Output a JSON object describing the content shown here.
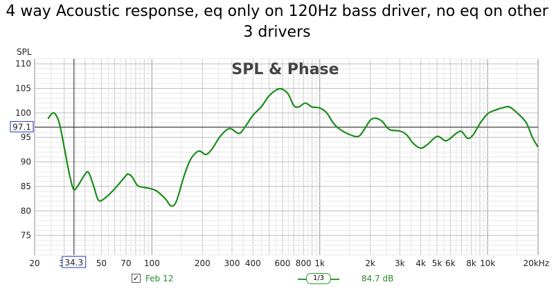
{
  "title": "4 way Acoustic response, eq only on 120Hz bass driver, no eq on other 3 drivers",
  "chart_data": {
    "type": "line",
    "title": "4 way Acoustic response, eq only on 120Hz bass driver, no eq on other 3 drivers",
    "overlay_label": "SPL & Phase",
    "ylabel": "SPL",
    "xlabel": "",
    "x_scale": "log",
    "xlim": [
      20,
      20000
    ],
    "ylim": [
      71,
      111
    ],
    "grid": true,
    "x_ticks": [
      {
        "value": 20,
        "label": "20"
      },
      {
        "value": 30,
        "label": "30"
      },
      {
        "value": 50,
        "label": "50"
      },
      {
        "value": 70,
        "label": "70"
      },
      {
        "value": 100,
        "label": "100"
      },
      {
        "value": 200,
        "label": "200"
      },
      {
        "value": 300,
        "label": "300"
      },
      {
        "value": 400,
        "label": "400"
      },
      {
        "value": 600,
        "label": "600"
      },
      {
        "value": 800,
        "label": "800"
      },
      {
        "value": 1000,
        "label": "1k"
      },
      {
        "value": 2000,
        "label": "2k"
      },
      {
        "value": 3000,
        "label": "3k"
      },
      {
        "value": 4000,
        "label": "4k"
      },
      {
        "value": 5000,
        "label": "5k"
      },
      {
        "value": 6000,
        "label": "6k"
      },
      {
        "value": 8000,
        "label": "8k"
      },
      {
        "value": 10000,
        "label": "10k"
      },
      {
        "value": 20000,
        "label": "20kHz"
      }
    ],
    "y_ticks": [
      {
        "value": 75,
        "label": "75"
      },
      {
        "value": 80,
        "label": "80"
      },
      {
        "value": 85,
        "label": "85"
      },
      {
        "value": 90,
        "label": "90"
      },
      {
        "value": 95,
        "label": "95"
      },
      {
        "value": 100,
        "label": "100"
      },
      {
        "value": 105,
        "label": "105"
      },
      {
        "value": 110,
        "label": "110"
      }
    ],
    "cursor": {
      "x": 34.3,
      "y": 97.1,
      "x_label": "34.3",
      "y_label": "97.1"
    },
    "series": [
      {
        "name": "Feb 12",
        "color": "#1a8c1a",
        "points": [
          [
            24,
            98.8
          ],
          [
            26,
            100
          ],
          [
            28,
            98
          ],
          [
            30,
            93
          ],
          [
            32,
            88
          ],
          [
            34,
            84.5
          ],
          [
            36,
            85
          ],
          [
            40,
            87.5
          ],
          [
            42,
            87.8
          ],
          [
            45,
            85
          ],
          [
            48,
            82.2
          ],
          [
            52,
            82.5
          ],
          [
            60,
            84.5
          ],
          [
            70,
            87.2
          ],
          [
            72,
            87.5
          ],
          [
            76,
            87
          ],
          [
            82,
            85.2
          ],
          [
            90,
            84.8
          ],
          [
            105,
            84.2
          ],
          [
            120,
            82.5
          ],
          [
            130,
            81
          ],
          [
            140,
            82
          ],
          [
            155,
            87
          ],
          [
            170,
            90.5
          ],
          [
            190,
            92.2
          ],
          [
            210,
            91.5
          ],
          [
            230,
            92.8
          ],
          [
            255,
            95.2
          ],
          [
            290,
            96.8
          ],
          [
            330,
            95.8
          ],
          [
            360,
            97.2
          ],
          [
            400,
            99.5
          ],
          [
            450,
            101.3
          ],
          [
            500,
            103.5
          ],
          [
            560,
            104.8
          ],
          [
            600,
            104.8
          ],
          [
            650,
            103.8
          ],
          [
            700,
            101.5
          ],
          [
            750,
            101.2
          ],
          [
            820,
            102
          ],
          [
            900,
            101.2
          ],
          [
            1000,
            101
          ],
          [
            1100,
            100
          ],
          [
            1200,
            98
          ],
          [
            1300,
            96.8
          ],
          [
            1500,
            95.6
          ],
          [
            1700,
            95.2
          ],
          [
            1850,
            96.7
          ],
          [
            2000,
            98.5
          ],
          [
            2150,
            98.9
          ],
          [
            2350,
            98.3
          ],
          [
            2600,
            96.6
          ],
          [
            3000,
            96.3
          ],
          [
            3300,
            95.5
          ],
          [
            3600,
            93.8
          ],
          [
            4000,
            92.8
          ],
          [
            4400,
            93.6
          ],
          [
            4800,
            94.8
          ],
          [
            5100,
            95.2
          ],
          [
            5600,
            94.3
          ],
          [
            6000,
            94.8
          ],
          [
            6500,
            95.8
          ],
          [
            7000,
            96.2
          ],
          [
            7600,
            94.8
          ],
          [
            8200,
            95.5
          ],
          [
            9000,
            97.8
          ],
          [
            10000,
            99.8
          ],
          [
            11000,
            100.5
          ],
          [
            12500,
            101.1
          ],
          [
            13500,
            101.2
          ],
          [
            15000,
            100
          ],
          [
            17000,
            98
          ],
          [
            18500,
            95
          ],
          [
            20000,
            93
          ]
        ]
      }
    ],
    "legend": {
      "entry": "Feb 12",
      "checked": true,
      "check_mark": "✓",
      "smoothing": "1/3",
      "value": "84.7 dB"
    }
  }
}
